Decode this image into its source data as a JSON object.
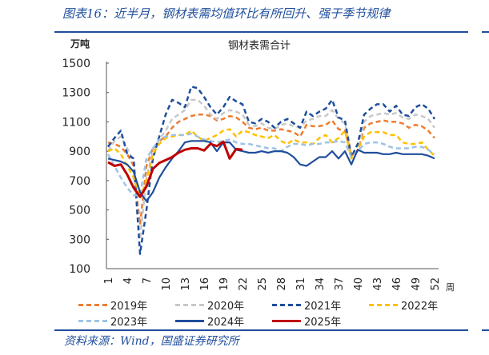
{
  "header": {
    "title": "图表16：近半月，钢材表需均值环比有所回升、强于季节规律"
  },
  "source": "资料来源：Wind，国盛证券研究所",
  "chart_data": {
    "type": "line",
    "title": "钢材表需合计",
    "ylabel": "万吨",
    "xlabel": "周",
    "ylim": [
      100,
      1500
    ],
    "yticks": [
      100,
      300,
      500,
      700,
      900,
      1100,
      1300,
      1500
    ],
    "xlim": [
      1,
      52
    ],
    "xticks": [
      1,
      4,
      7,
      10,
      13,
      16,
      19,
      22,
      25,
      28,
      31,
      34,
      37,
      40,
      43,
      46,
      49,
      52
    ],
    "grid": false,
    "legend": "bottom",
    "series": [
      {
        "name": "2019年",
        "color": "#ed7d31",
        "style": "dashed",
        "values": [
          960,
          950,
          930,
          880,
          800,
          400,
          800,
          920,
          970,
          1000,
          1060,
          1100,
          1120,
          1140,
          1150,
          1150,
          1140,
          1110,
          1120,
          1140,
          1130,
          1100,
          1060,
          1050,
          1060,
          1040,
          1040,
          1050,
          1040,
          1030,
          1000,
          1080,
          1070,
          1070,
          1080,
          1110,
          1050,
          1040,
          870,
          900,
          1060,
          1090,
          1100,
          1110,
          1100,
          1100,
          1090,
          1060,
          1080,
          1070,
          1040,
          990
        ]
      },
      {
        "name": "2020年",
        "color": "#c8c8c8",
        "style": "dashed",
        "values": [
          900,
          970,
          1000,
          920,
          830,
          300,
          720,
          900,
          980,
          1040,
          1120,
          1150,
          1180,
          1250,
          1250,
          1210,
          1150,
          1120,
          1160,
          1180,
          1170,
          1150,
          1080,
          1070,
          1090,
          1060,
          1050,
          1080,
          1090,
          1070,
          1060,
          1110,
          1120,
          1140,
          1140,
          1180,
          1120,
          1090,
          880,
          900,
          1100,
          1140,
          1150,
          1160,
          1150,
          1160,
          1130,
          1120,
          1150,
          1140,
          1120,
          1060
        ]
      },
      {
        "name": "2021年",
        "color": "#1f4e9c",
        "style": "dashed",
        "values": [
          930,
          990,
          1040,
          880,
          850,
          200,
          500,
          850,
          1000,
          1150,
          1250,
          1230,
          1200,
          1340,
          1330,
          1270,
          1200,
          1150,
          1200,
          1270,
          1240,
          1220,
          1100,
          1090,
          1120,
          1100,
          1060,
          1100,
          1120,
          1090,
          1060,
          1170,
          1140,
          1170,
          1190,
          1250,
          1130,
          1110,
          860,
          950,
          1150,
          1190,
          1220,
          1220,
          1170,
          1210,
          1150,
          1140,
          1200,
          1220,
          1190,
          1120
        ]
      },
      {
        "name": "2022年",
        "color": "#ffc000",
        "style": "dashed",
        "values": [
          900,
          920,
          880,
          800,
          720,
          580,
          700,
          880,
          950,
          990,
          1000,
          1010,
          1010,
          1040,
          1000,
          970,
          990,
          1010,
          1040,
          1050,
          1000,
          1040,
          1030,
          1010,
          1000,
          990,
          1010,
          970,
          950,
          980,
          960,
          960,
          950,
          990,
          1010,
          960,
          990,
          1040,
          850,
          910,
          1000,
          1030,
          1030,
          1030,
          1010,
          1010,
          960,
          950,
          950,
          960,
          910,
          870
        ]
      },
      {
        "name": "2023年",
        "color": "#9dc3e6",
        "style": "dashed",
        "values": [
          880,
          800,
          720,
          650,
          600,
          600,
          850,
          920,
          980,
          1000,
          1010,
          1010,
          1010,
          1020,
          1000,
          980,
          970,
          960,
          970,
          980,
          960,
          950,
          950,
          940,
          930,
          920,
          920,
          900,
          930,
          950,
          950,
          940,
          950,
          950,
          960,
          960,
          970,
          960,
          860,
          900,
          950,
          960,
          960,
          950,
          930,
          920,
          920,
          920,
          930,
          930,
          910,
          880
        ]
      },
      {
        "name": "2024年",
        "color": "#1f4e9c",
        "style": "solid",
        "values": [
          850,
          840,
          830,
          810,
          760,
          620,
          560,
          620,
          720,
          790,
          850,
          900,
          960,
          970,
          970,
          970,
          960,
          900,
          960,
          960,
          910,
          900,
          890,
          890,
          900,
          890,
          900,
          900,
          890,
          860,
          810,
          800,
          830,
          860,
          860,
          900,
          850,
          900,
          810,
          910,
          890,
          890,
          890,
          880,
          880,
          890,
          880,
          880,
          880,
          880,
          870,
          850
        ]
      },
      {
        "name": "2025年",
        "color": "#c00000",
        "style": "solid",
        "values": [
          825,
          800,
          810,
          740,
          650,
          590,
          660,
          780,
          820,
          840,
          860,
          890,
          910,
          920,
          920,
          905,
          950,
          935,
          965,
          850,
          915,
          910
        ]
      }
    ]
  }
}
